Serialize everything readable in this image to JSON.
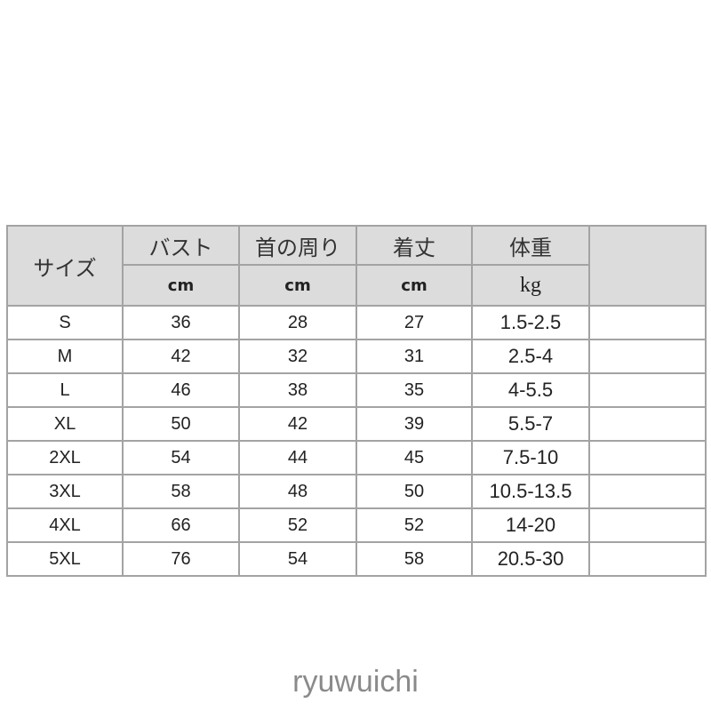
{
  "table": {
    "size_header": "サイズ",
    "columns": [
      {
        "label": "バスト",
        "unit": "cm"
      },
      {
        "label": "首の周り",
        "unit": "cm"
      },
      {
        "label": "着丈",
        "unit": "cm"
      },
      {
        "label": "体重",
        "unit": "kg"
      }
    ],
    "rows": [
      [
        "S",
        "36",
        "28",
        "27",
        "1.5-2.5"
      ],
      [
        "M",
        "42",
        "32",
        "31",
        "2.5-4"
      ],
      [
        "L",
        "46",
        "38",
        "35",
        "4-5.5"
      ],
      [
        "XL",
        "50",
        "42",
        "39",
        "5.5-7"
      ],
      [
        "2XL",
        "54",
        "44",
        "45",
        "7.5-10"
      ],
      [
        "3XL",
        "58",
        "48",
        "50",
        "10.5-13.5"
      ],
      [
        "4XL",
        "66",
        "52",
        "52",
        "14-20"
      ],
      [
        "5XL",
        "76",
        "54",
        "58",
        "20.5-30"
      ]
    ]
  },
  "watermark": "ryuwuichi",
  "colors": {
    "header_bg": "#dcdcdc",
    "border": "#a3a3a3"
  }
}
